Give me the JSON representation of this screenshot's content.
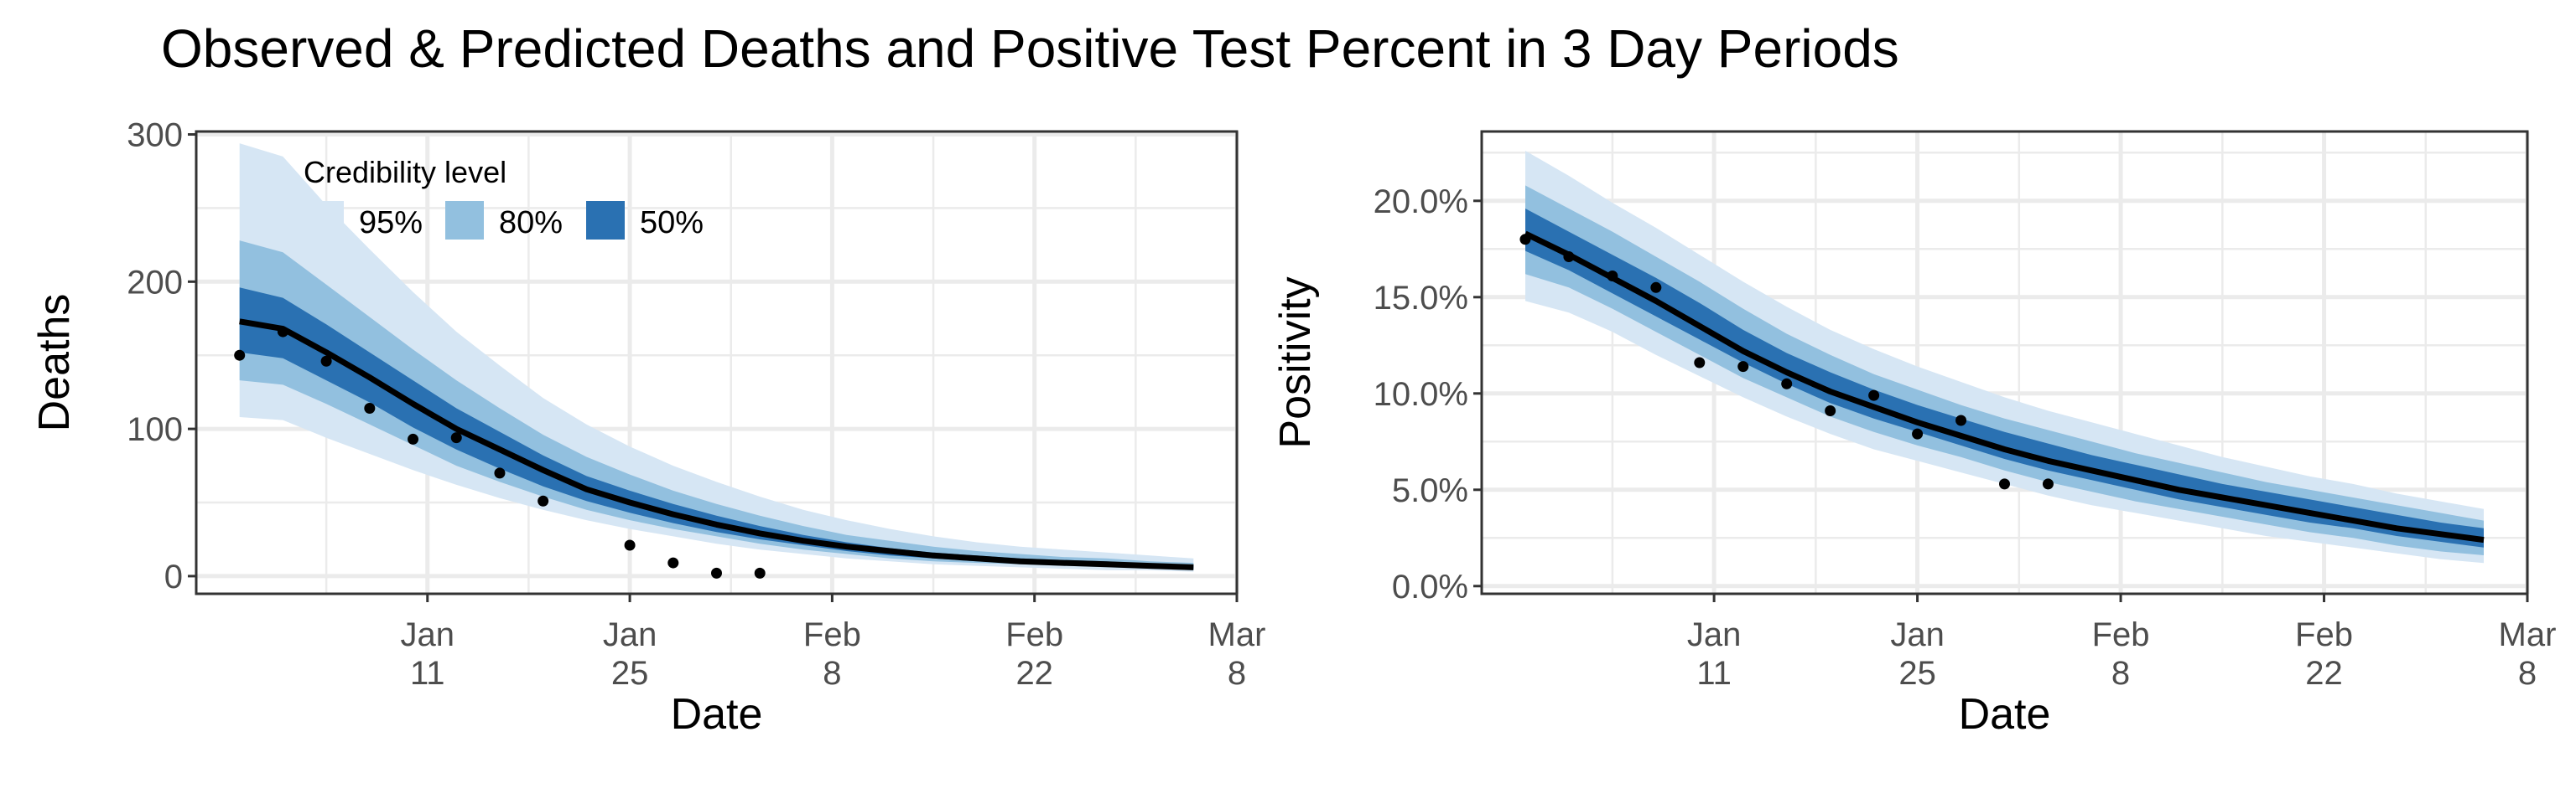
{
  "title": "Observed & Predicted Deaths and Positive Test Percent in 3 Day Periods",
  "colors": {
    "band95": "#d6e6f4",
    "band80": "#92c0df",
    "band50": "#2a71b2",
    "line": "#000000",
    "grid": "#ebebeb",
    "panel_border": "#333333"
  },
  "legend": {
    "title": "Credibility level",
    "items": [
      {
        "label": "95%",
        "color": "#d6e6f4"
      },
      {
        "label": "80%",
        "color": "#92c0df"
      },
      {
        "label": "50%",
        "color": "#2a71b2"
      }
    ]
  },
  "chart_data": [
    {
      "type": "area",
      "xlabel": "Date",
      "ylabel": "Deaths",
      "xlim": [
        "2020-12-26",
        "2021-03-08"
      ],
      "ylim": [
        -12,
        302
      ],
      "x_ticks": [
        {
          "date": "2021-01-11",
          "month": "Jan",
          "day": "11"
        },
        {
          "date": "2021-01-25",
          "month": "Jan",
          "day": "25"
        },
        {
          "date": "2021-02-08",
          "month": "Feb",
          "day": "8"
        },
        {
          "date": "2021-02-22",
          "month": "Feb",
          "day": "22"
        },
        {
          "date": "2021-03-08",
          "month": "Mar",
          "day": "8"
        }
      ],
      "y_ticks": [
        {
          "value": 0,
          "label": "0"
        },
        {
          "value": 100,
          "label": "100"
        },
        {
          "value": 200,
          "label": "200"
        },
        {
          "value": 300,
          "label": "300"
        }
      ],
      "legend_position": "top-left inside",
      "grid": true,
      "predicted": {
        "x": [
          "2020-12-29",
          "2021-01-01",
          "2021-01-04",
          "2021-01-07",
          "2021-01-10",
          "2021-01-13",
          "2021-01-16",
          "2021-01-19",
          "2021-01-22",
          "2021-01-25",
          "2021-01-28",
          "2021-01-31",
          "2021-02-03",
          "2021-02-06",
          "2021-02-09",
          "2021-02-12",
          "2021-02-15",
          "2021-02-18",
          "2021-02-21",
          "2021-02-24",
          "2021-02-27",
          "2021-03-02",
          "2021-03-05"
        ],
        "median": [
          173,
          168,
          152,
          135,
          117,
          100,
          86,
          72,
          59,
          50,
          42,
          35,
          29,
          24,
          20,
          17,
          14,
          12,
          10,
          9,
          8,
          7,
          6
        ],
        "lo50": [
          152,
          148,
          133,
          118,
          101,
          86,
          73,
          61,
          51,
          43,
          36,
          30,
          25,
          21,
          17,
          14,
          12,
          10,
          9,
          8,
          7,
          6,
          5
        ],
        "hi50": [
          196,
          189,
          171,
          152,
          133,
          114,
          98,
          82,
          68,
          58,
          49,
          41,
          34,
          28,
          23,
          19,
          16,
          14,
          12,
          11,
          10,
          8,
          7
        ],
        "lo80": [
          133,
          130,
          117,
          103,
          89,
          75,
          64,
          54,
          45,
          38,
          32,
          27,
          22,
          18,
          15,
          12,
          10,
          9,
          8,
          7,
          6,
          5,
          4
        ],
        "hi80": [
          228,
          220,
          198,
          176,
          154,
          133,
          114,
          96,
          81,
          69,
          58,
          49,
          41,
          34,
          28,
          24,
          20,
          17,
          15,
          13,
          12,
          10,
          9
        ],
        "lo95": [
          108,
          106,
          94,
          83,
          72,
          62,
          53,
          45,
          38,
          32,
          27,
          22,
          18,
          15,
          12,
          10,
          8,
          7,
          6,
          5,
          4,
          4,
          3
        ],
        "hi95": [
          294,
          285,
          252,
          222,
          193,
          166,
          143,
          121,
          103,
          88,
          75,
          64,
          54,
          45,
          38,
          32,
          27,
          23,
          20,
          18,
          16,
          14,
          12
        ]
      },
      "observed": {
        "x": [
          "2020-12-29",
          "2021-01-01",
          "2021-01-04",
          "2021-01-07",
          "2021-01-10",
          "2021-01-13",
          "2021-01-16",
          "2021-01-19",
          "2021-01-25",
          "2021-01-28",
          "2021-01-31",
          "2021-02-03"
        ],
        "y": [
          150,
          166,
          146,
          114,
          93,
          94,
          70,
          51,
          21,
          9,
          2,
          2
        ]
      }
    },
    {
      "type": "area",
      "xlabel": "Date",
      "ylabel": "Positivity",
      "xlim": [
        "2020-12-26",
        "2021-03-08"
      ],
      "ylim": [
        -0.004,
        0.236
      ],
      "x_ticks": [
        {
          "date": "2021-01-11",
          "month": "Jan",
          "day": "11"
        },
        {
          "date": "2021-01-25",
          "month": "Jan",
          "day": "25"
        },
        {
          "date": "2021-02-08",
          "month": "Feb",
          "day": "8"
        },
        {
          "date": "2021-02-22",
          "month": "Feb",
          "day": "22"
        },
        {
          "date": "2021-03-08",
          "month": "Mar",
          "day": "8"
        }
      ],
      "y_ticks": [
        {
          "value": 0,
          "label": "0.0%"
        },
        {
          "value": 0.05,
          "label": "5.0%"
        },
        {
          "value": 0.1,
          "label": "10.0%"
        },
        {
          "value": 0.15,
          "label": "15.0%"
        },
        {
          "value": 0.2,
          "label": "20.0%"
        }
      ],
      "grid": true,
      "predicted": {
        "x": [
          "2020-12-29",
          "2021-01-01",
          "2021-01-04",
          "2021-01-07",
          "2021-01-10",
          "2021-01-13",
          "2021-01-16",
          "2021-01-19",
          "2021-01-22",
          "2021-01-25",
          "2021-01-28",
          "2021-01-31",
          "2021-02-03",
          "2021-02-06",
          "2021-02-09",
          "2021-02-12",
          "2021-02-15",
          "2021-02-18",
          "2021-02-21",
          "2021-02-24",
          "2021-02-27",
          "2021-03-02",
          "2021-03-05"
        ],
        "median": [
          0.183,
          0.172,
          0.16,
          0.148,
          0.135,
          0.122,
          0.111,
          0.101,
          0.093,
          0.085,
          0.078,
          0.071,
          0.065,
          0.06,
          0.055,
          0.05,
          0.046,
          0.042,
          0.038,
          0.034,
          0.03,
          0.027,
          0.024
        ],
        "lo50": [
          0.174,
          0.164,
          0.152,
          0.14,
          0.128,
          0.116,
          0.105,
          0.095,
          0.087,
          0.08,
          0.073,
          0.066,
          0.06,
          0.055,
          0.05,
          0.045,
          0.041,
          0.037,
          0.033,
          0.03,
          0.026,
          0.023,
          0.02
        ],
        "hi50": [
          0.196,
          0.184,
          0.172,
          0.16,
          0.147,
          0.133,
          0.121,
          0.111,
          0.102,
          0.094,
          0.087,
          0.08,
          0.074,
          0.068,
          0.063,
          0.058,
          0.053,
          0.049,
          0.045,
          0.041,
          0.037,
          0.033,
          0.03
        ],
        "lo80": [
          0.162,
          0.155,
          0.144,
          0.132,
          0.12,
          0.108,
          0.098,
          0.088,
          0.08,
          0.073,
          0.067,
          0.06,
          0.054,
          0.049,
          0.044,
          0.04,
          0.036,
          0.032,
          0.028,
          0.025,
          0.021,
          0.018,
          0.016
        ],
        "hi80": [
          0.208,
          0.196,
          0.184,
          0.171,
          0.158,
          0.144,
          0.131,
          0.12,
          0.11,
          0.102,
          0.094,
          0.087,
          0.081,
          0.075,
          0.069,
          0.064,
          0.059,
          0.054,
          0.05,
          0.046,
          0.042,
          0.038,
          0.034
        ],
        "lo95": [
          0.148,
          0.142,
          0.132,
          0.12,
          0.109,
          0.098,
          0.088,
          0.079,
          0.071,
          0.065,
          0.059,
          0.053,
          0.047,
          0.042,
          0.038,
          0.034,
          0.03,
          0.026,
          0.023,
          0.02,
          0.017,
          0.014,
          0.012
        ],
        "hi95": [
          0.226,
          0.213,
          0.199,
          0.186,
          0.172,
          0.158,
          0.145,
          0.133,
          0.123,
          0.114,
          0.106,
          0.098,
          0.091,
          0.085,
          0.079,
          0.073,
          0.067,
          0.062,
          0.057,
          0.053,
          0.048,
          0.044,
          0.04
        ]
      },
      "observed": {
        "x": [
          "2020-12-29",
          "2021-01-01",
          "2021-01-04",
          "2021-01-07",
          "2021-01-10",
          "2021-01-13",
          "2021-01-16",
          "2021-01-19",
          "2021-01-22",
          "2021-01-25",
          "2021-01-28",
          "2021-01-31",
          "2021-02-03"
        ],
        "y": [
          0.18,
          0.171,
          0.161,
          0.155,
          0.116,
          0.114,
          0.105,
          0.091,
          0.099,
          0.079,
          0.086,
          0.053,
          0.053
        ]
      }
    }
  ]
}
